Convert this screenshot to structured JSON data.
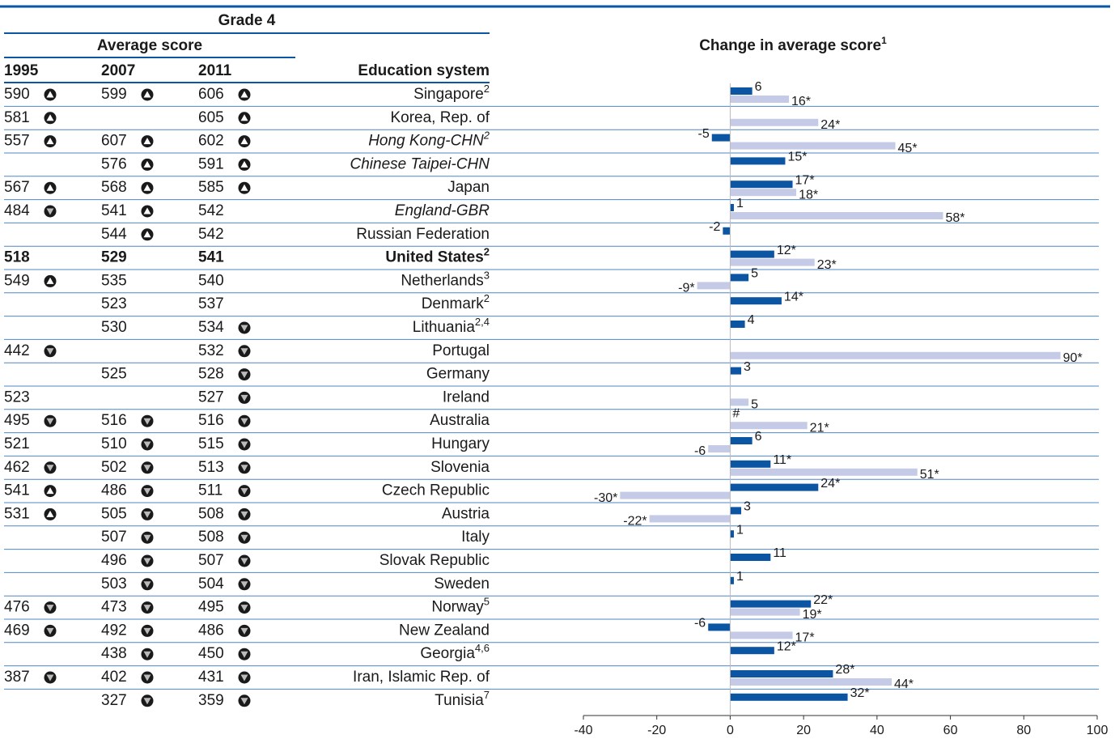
{
  "header": {
    "title": "Grade 4",
    "subtitle": "Average score"
  },
  "table": {
    "columns": [
      "1995",
      "2007",
      "2011",
      "Education system"
    ],
    "rows": [
      {
        "name": "Singapore",
        "note": "2",
        "scores": [
          {
            "value": 590,
            "sig": "up"
          },
          {
            "value": 599,
            "sig": "up"
          },
          {
            "value": 606,
            "sig": "up"
          }
        ]
      },
      {
        "name": "Korea, Rep. of",
        "scores": [
          {
            "value": 581,
            "sig": "up"
          },
          null,
          {
            "value": 605,
            "sig": "up"
          }
        ]
      },
      {
        "name": "Hong Kong-CHN",
        "note": "2",
        "italic": true,
        "scores": [
          {
            "value": 557,
            "sig": "up"
          },
          {
            "value": 607,
            "sig": "up"
          },
          {
            "value": 602,
            "sig": "up"
          }
        ]
      },
      {
        "name": "Chinese Taipei-CHN",
        "italic": true,
        "scores": [
          null,
          {
            "value": 576,
            "sig": "up"
          },
          {
            "value": 591,
            "sig": "up"
          }
        ]
      },
      {
        "name": "Japan",
        "scores": [
          {
            "value": 567,
            "sig": "up"
          },
          {
            "value": 568,
            "sig": "up"
          },
          {
            "value": 585,
            "sig": "up"
          }
        ]
      },
      {
        "name": "England-GBR",
        "italic": true,
        "scores": [
          {
            "value": 484,
            "sig": "down"
          },
          {
            "value": 541,
            "sig": "up"
          },
          {
            "value": 542
          }
        ]
      },
      {
        "name": "Russian Federation",
        "scores": [
          null,
          {
            "value": 544,
            "sig": "up"
          },
          {
            "value": 542
          }
        ]
      },
      {
        "name": "United States",
        "note": "2",
        "bold": true,
        "scores": [
          {
            "value": 518
          },
          {
            "value": 529
          },
          {
            "value": 541
          }
        ]
      },
      {
        "name": "Netherlands",
        "note": "3",
        "scores": [
          {
            "value": 549,
            "sig": "up"
          },
          {
            "value": 535
          },
          {
            "value": 540
          }
        ]
      },
      {
        "name": "Denmark",
        "note": "2",
        "scores": [
          null,
          {
            "value": 523
          },
          {
            "value": 537
          }
        ]
      },
      {
        "name": "Lithuania",
        "note": "2,4",
        "scores": [
          null,
          {
            "value": 530
          },
          {
            "value": 534,
            "sig": "down"
          }
        ]
      },
      {
        "name": "Portugal",
        "scores": [
          {
            "value": 442,
            "sig": "down"
          },
          null,
          {
            "value": 532,
            "sig": "down"
          }
        ]
      },
      {
        "name": "Germany",
        "scores": [
          null,
          {
            "value": 525
          },
          {
            "value": 528,
            "sig": "down"
          }
        ]
      },
      {
        "name": "Ireland",
        "scores": [
          {
            "value": 523
          },
          null,
          {
            "value": 527,
            "sig": "down"
          }
        ]
      },
      {
        "name": "Australia",
        "scores": [
          {
            "value": 495,
            "sig": "down"
          },
          {
            "value": 516,
            "sig": "down"
          },
          {
            "value": 516,
            "sig": "down"
          }
        ]
      },
      {
        "name": "Hungary",
        "scores": [
          {
            "value": 521
          },
          {
            "value": 510,
            "sig": "down"
          },
          {
            "value": 515,
            "sig": "down"
          }
        ]
      },
      {
        "name": "Slovenia",
        "scores": [
          {
            "value": 462,
            "sig": "down"
          },
          {
            "value": 502,
            "sig": "down"
          },
          {
            "value": 513,
            "sig": "down"
          }
        ]
      },
      {
        "name": "Czech Republic",
        "scores": [
          {
            "value": 541,
            "sig": "up"
          },
          {
            "value": 486,
            "sig": "down"
          },
          {
            "value": 511,
            "sig": "down"
          }
        ]
      },
      {
        "name": "Austria",
        "scores": [
          {
            "value": 531,
            "sig": "up"
          },
          {
            "value": 505,
            "sig": "down"
          },
          {
            "value": 508,
            "sig": "down"
          }
        ]
      },
      {
        "name": "Italy",
        "scores": [
          null,
          {
            "value": 507,
            "sig": "down"
          },
          {
            "value": 508,
            "sig": "down"
          }
        ]
      },
      {
        "name": "Slovak Republic",
        "scores": [
          null,
          {
            "value": 496,
            "sig": "down"
          },
          {
            "value": 507,
            "sig": "down"
          }
        ]
      },
      {
        "name": "Sweden",
        "scores": [
          null,
          {
            "value": 503,
            "sig": "down"
          },
          {
            "value": 504,
            "sig": "down"
          }
        ]
      },
      {
        "name": "Norway",
        "note": "5",
        "scores": [
          {
            "value": 476,
            "sig": "down"
          },
          {
            "value": 473,
            "sig": "down"
          },
          {
            "value": 495,
            "sig": "down"
          }
        ]
      },
      {
        "name": "New Zealand",
        "scores": [
          {
            "value": 469,
            "sig": "down"
          },
          {
            "value": 492,
            "sig": "down"
          },
          {
            "value": 486,
            "sig": "down"
          }
        ]
      },
      {
        "name": "Georgia",
        "note": "4,6",
        "scores": [
          null,
          {
            "value": 438,
            "sig": "down"
          },
          {
            "value": 450,
            "sig": "down"
          }
        ]
      },
      {
        "name": "Iran, Islamic Rep. of",
        "scores": [
          {
            "value": 387,
            "sig": "down"
          },
          {
            "value": 402,
            "sig": "down"
          },
          {
            "value": 431,
            "sig": "down"
          }
        ]
      },
      {
        "name": "Tunisia",
        "note": "7",
        "scores": [
          null,
          {
            "value": 327,
            "sig": "down"
          },
          {
            "value": 359,
            "sig": "down"
          }
        ]
      }
    ]
  },
  "chart_data": {
    "type": "bar",
    "orientation": "horizontal",
    "title": "Change in average score",
    "title_note": "1",
    "xlim": [
      -40,
      100
    ],
    "xticks": [
      -40,
      -20,
      0,
      20,
      40,
      60,
      80,
      100
    ],
    "series": [
      {
        "color": "#0b55a3",
        "values": [
          6,
          null,
          -5,
          15,
          17,
          1,
          -2,
          12,
          5,
          14,
          4,
          null,
          3,
          null,
          0,
          6,
          11,
          24,
          3,
          1,
          11,
          1,
          22,
          -6,
          12,
          28,
          32
        ],
        "value_labels": [
          "6",
          null,
          "-5",
          "15*",
          "17*",
          "1",
          "-2",
          "12*",
          "5",
          "14*",
          "4",
          null,
          "3",
          null,
          "#",
          "6",
          "11*",
          "24*",
          "3",
          "1",
          "11",
          "1",
          "22*",
          "-6",
          "12*",
          "28*",
          "32*"
        ]
      },
      {
        "color": "#c5cbe6",
        "values": [
          16,
          24,
          45,
          null,
          18,
          58,
          null,
          23,
          -9,
          null,
          null,
          90,
          null,
          5,
          21,
          -6,
          51,
          -30,
          -22,
          null,
          null,
          null,
          19,
          17,
          null,
          44,
          null
        ],
        "value_labels": [
          "16*",
          "24*",
          "45*",
          null,
          "18*",
          "58*",
          null,
          "23*",
          "-9*",
          null,
          null,
          "90*",
          null,
          "5",
          "21*",
          "-6",
          "51*",
          "-30*",
          "-22*",
          null,
          null,
          null,
          "19*",
          "17*",
          null,
          "44*",
          null
        ]
      }
    ]
  }
}
